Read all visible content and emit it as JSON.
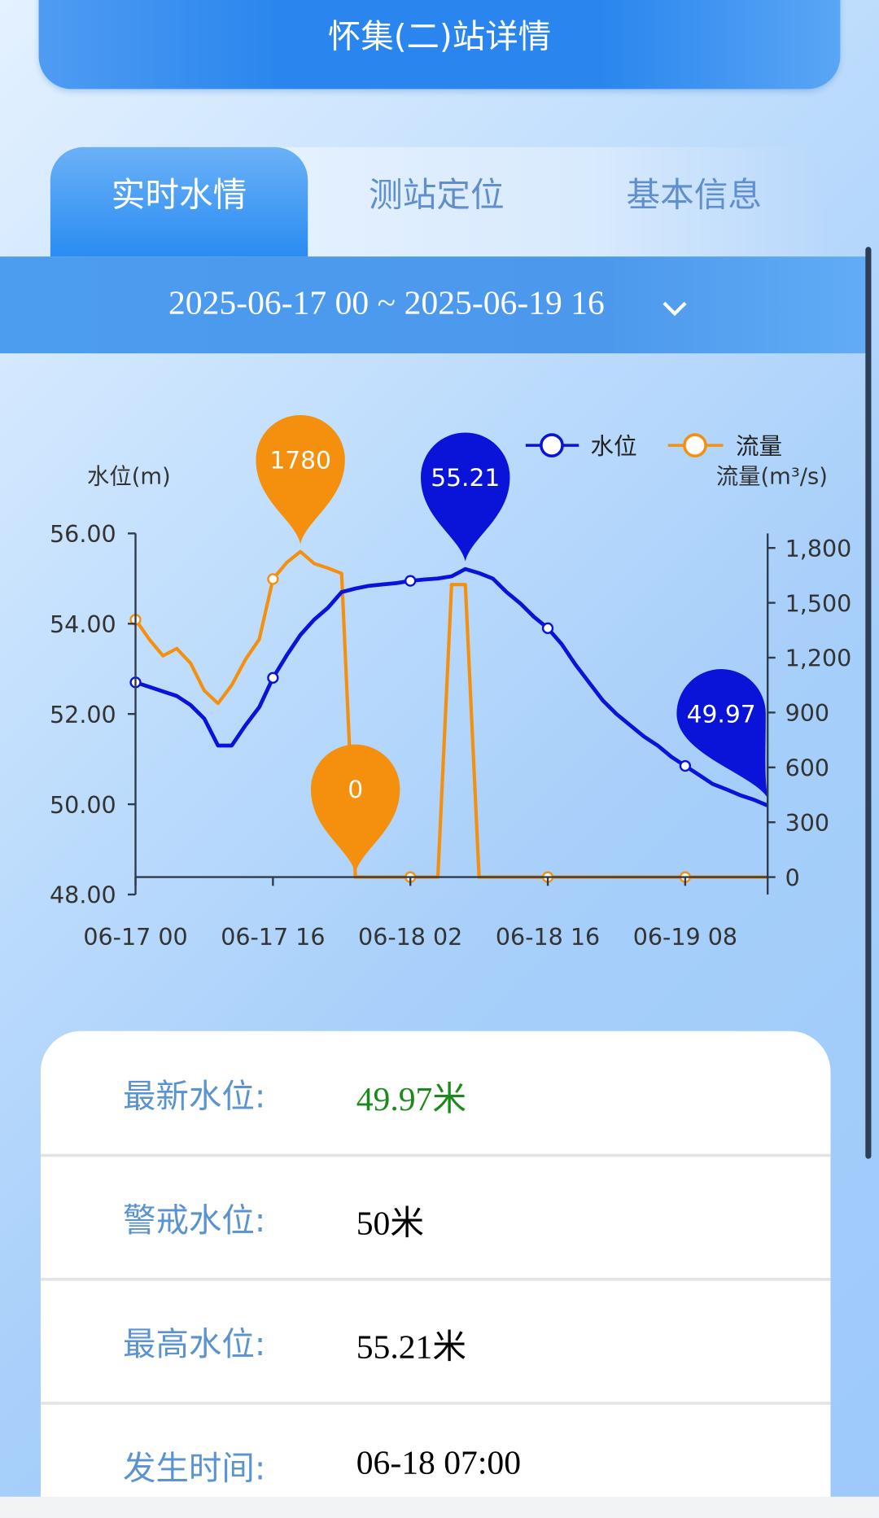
{
  "header": {
    "title": "怀集(二)站详情"
  },
  "tabs": [
    {
      "label": "实时水情",
      "active": true
    },
    {
      "label": "测站定位",
      "active": false
    },
    {
      "label": "基本信息",
      "active": false
    }
  ],
  "date_range": {
    "text": "2025-06-17 00 ~ 2025-06-19 16",
    "icon": "chevron-down-icon"
  },
  "chart_data": {
    "type": "line",
    "title": "",
    "ylabel": "水位(m)",
    "y2label": "流量(m³/s)",
    "ylim": [
      48,
      56
    ],
    "yticks": [
      "56.00",
      "54.00",
      "52.00",
      "50.00",
      "48.00"
    ],
    "y2lim": [
      0,
      1800
    ],
    "y2ticks": [
      "1,800",
      "1,500",
      "1,200",
      "900",
      "600",
      "300",
      "0"
    ],
    "x_tick_labels": [
      "06-17 00",
      "06-17 16",
      "06-18 02",
      "06-18 16",
      "06-19 08"
    ],
    "x_tick_positions": [
      0,
      10,
      20,
      30,
      40
    ],
    "legend": {
      "position": "top-right",
      "entries": [
        "水位",
        "流量"
      ]
    },
    "colors": {
      "level": "#0a14d8",
      "flow": "#f5900f"
    },
    "series": [
      {
        "name": "水位",
        "axis": "left",
        "values": [
          52.7,
          52.6,
          52.5,
          52.4,
          52.2,
          51.9,
          51.3,
          51.3,
          51.75,
          52.15,
          52.8,
          53.3,
          53.75,
          54.09,
          54.35,
          54.7,
          54.78,
          54.84,
          54.87,
          54.9,
          54.95,
          54.98,
          55.0,
          55.05,
          55.21,
          55.12,
          55.0,
          54.7,
          54.45,
          54.15,
          53.9,
          53.55,
          53.1,
          52.7,
          52.3,
          52.0,
          51.75,
          51.5,
          51.3,
          51.05,
          50.85,
          50.65,
          50.45,
          50.33,
          50.2,
          50.1,
          49.97
        ]
      },
      {
        "name": "流量",
        "axis": "right",
        "values": [
          1408,
          1300,
          1210,
          1250,
          1170,
          1020,
          950,
          1050,
          1190,
          1300,
          1630,
          1720,
          1780,
          1715,
          1690,
          1660,
          0,
          0,
          0,
          0,
          0,
          0,
          0,
          1600,
          1600,
          0,
          0,
          0,
          0,
          0,
          0,
          0,
          0,
          0,
          0,
          0,
          0,
          0,
          0,
          0,
          0,
          0,
          0,
          0,
          0,
          0,
          0
        ]
      }
    ],
    "annotations": [
      {
        "series": "流量",
        "index": 12,
        "label": "1780"
      },
      {
        "series": "流量",
        "index": 16,
        "label": "0"
      },
      {
        "series": "水位",
        "index": 24,
        "label": "55.21"
      },
      {
        "series": "水位",
        "index": 46,
        "label": "49.97"
      }
    ]
  },
  "info": [
    {
      "label": "最新水位:",
      "value": "49.97米",
      "color": "#1a8a1a"
    },
    {
      "label": "警戒水位:",
      "value": "50米",
      "color": "#000000"
    },
    {
      "label": "最高水位:",
      "value": "55.21米",
      "color": "#000000"
    },
    {
      "label": "发生时间:",
      "value": "06-18 07:00",
      "color": "#000000"
    }
  ]
}
